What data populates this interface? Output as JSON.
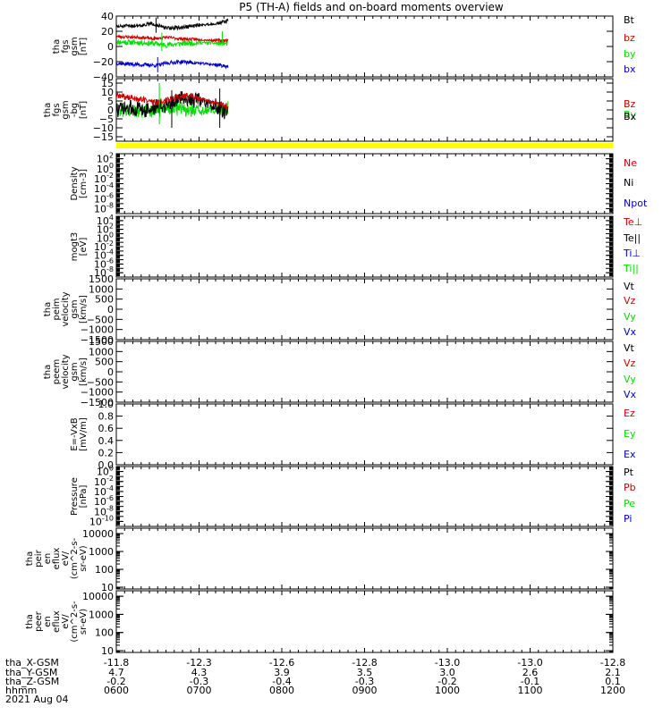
{
  "title": "P5 (TH-A) fields and on-board moments overview",
  "date_label": "2021 Aug 04",
  "footer_rows": [
    {
      "label": "tha_X-GSM",
      "values": [
        "-11.8",
        "-12.3",
        "-12.6",
        "-12.8",
        "-13.0",
        "-13.0",
        "-12.8"
      ]
    },
    {
      "label": "tha_Y-GSM",
      "values": [
        "4.7",
        "4.3",
        "3.9",
        "3.5",
        "3.0",
        "2.6",
        "2.1"
      ]
    },
    {
      "label": "tha_Z-GSM",
      "values": [
        "-0.2",
        "-0.3",
        "-0.4",
        "-0.3",
        "-0.2",
        "-0.1",
        "0.1"
      ]
    },
    {
      "label": "hhmm",
      "values": [
        "0600",
        "0700",
        "0800",
        "0900",
        "1000",
        "1100",
        "1200"
      ]
    }
  ],
  "colors": {
    "black": "#000000",
    "red": "#cc0000",
    "green": "#00dd00",
    "blue": "#0000cc",
    "yellow": "#ffff00"
  },
  "status_bar": {
    "color": "yellow"
  },
  "chart_data": [
    {
      "type": "line",
      "ylabel": [
        "tha",
        "fgs",
        "gsm",
        "[nT]"
      ],
      "ylim": [
        -40,
        40
      ],
      "yticks": [
        {
          "v": 40,
          "label": "40"
        },
        {
          "v": 20,
          "label": "20"
        },
        {
          "v": 0,
          "label": "0"
        },
        {
          "v": -20,
          "label": "−20"
        },
        {
          "v": -40,
          "label": "−40"
        }
      ],
      "legend": [
        {
          "label": "Bt",
          "color": "black"
        },
        {
          "label": "bz",
          "color": "red"
        },
        {
          "label": "by",
          "color": "green"
        },
        {
          "label": "bx",
          "color": "blue"
        }
      ],
      "series": [
        {
          "color": "green",
          "seed": 11,
          "amp": 3.5,
          "pts": [
            [
              600,
              6
            ],
            [
              630,
              5
            ],
            [
              645,
              4
            ],
            [
              660,
              2
            ],
            [
              680,
              4
            ],
            [
              700,
              5
            ],
            [
              730,
              4
            ],
            [
              735,
              4
            ]
          ]
        },
        {
          "color": "red",
          "seed": 23,
          "amp": 2,
          "pts": [
            [
              600,
              13
            ],
            [
              630,
              12
            ],
            [
              645,
              10
            ],
            [
              660,
              12
            ],
            [
              680,
              10
            ],
            [
              700,
              9
            ],
            [
              720,
              8
            ],
            [
              735,
              8
            ]
          ]
        },
        {
          "color": "blue",
          "seed": 37,
          "amp": 2.5,
          "pts": [
            [
              600,
              -22
            ],
            [
              630,
              -24
            ],
            [
              650,
              -25
            ],
            [
              660,
              -22
            ],
            [
              680,
              -20
            ],
            [
              700,
              -22
            ],
            [
              720,
              -24
            ],
            [
              735,
              -26
            ]
          ]
        },
        {
          "color": "black",
          "seed": 51,
          "amp": 2.5,
          "pts": [
            [
              600,
              26
            ],
            [
              630,
              28
            ],
            [
              645,
              30
            ],
            [
              660,
              24
            ],
            [
              680,
              25
            ],
            [
              700,
              28
            ],
            [
              720,
              30
            ],
            [
              735,
              34
            ]
          ]
        }
      ],
      "spikes": [
        {
          "color": "black",
          "x": 648,
          "y1": 38,
          "y2": 18
        },
        {
          "color": "blue",
          "x": 650,
          "y1": -14,
          "y2": -34
        },
        {
          "color": "green",
          "x": 655,
          "y1": 18,
          "y2": -6
        },
        {
          "color": "green",
          "x": 728,
          "y1": 20,
          "y2": 4
        }
      ]
    },
    {
      "type": "line",
      "ylabel": [
        "tha",
        "fgs",
        "gsm",
        "-bg",
        "[nT]"
      ],
      "ylim": [
        -17.5,
        17.5
      ],
      "yticks": [
        {
          "v": 15,
          "label": "15"
        },
        {
          "v": 10,
          "label": "10"
        },
        {
          "v": 5,
          "label": "5"
        },
        {
          "v": 0,
          "label": "0"
        },
        {
          "v": -5,
          "label": "−5"
        },
        {
          "v": -10,
          "label": "−10"
        },
        {
          "v": -15,
          "label": "−15"
        }
      ],
      "legend": [
        {
          "label": "Bz",
          "color": "red"
        },
        {
          "label": "By",
          "color": "green"
        },
        {
          "label": "Bx",
          "color": "black"
        }
      ],
      "series": [
        {
          "color": "green",
          "seed": 61,
          "amp": 4,
          "pts": [
            [
              600,
              0
            ],
            [
              630,
              -1
            ],
            [
              650,
              0
            ],
            [
              670,
              1
            ],
            [
              700,
              -1
            ],
            [
              735,
              1
            ]
          ]
        },
        {
          "color": "black",
          "seed": 73,
          "amp": 4.5,
          "pts": [
            [
              600,
              0
            ],
            [
              620,
              1
            ],
            [
              640,
              0
            ],
            [
              660,
              3
            ],
            [
              680,
              7
            ],
            [
              700,
              5
            ],
            [
              720,
              2
            ],
            [
              735,
              -2
            ]
          ]
        },
        {
          "color": "red",
          "seed": 89,
          "amp": 1.8,
          "pts": [
            [
              600,
              8
            ],
            [
              630,
              6
            ],
            [
              650,
              4
            ],
            [
              670,
              7
            ],
            [
              690,
              8
            ],
            [
              710,
              5
            ],
            [
              735,
              2
            ]
          ]
        }
      ],
      "spikes": [
        {
          "color": "green",
          "x": 652,
          "y1": 15,
          "y2": -8
        },
        {
          "color": "black",
          "x": 667,
          "y1": 11,
          "y2": -10
        },
        {
          "color": "black",
          "x": 725,
          "y1": 12,
          "y2": -10
        }
      ]
    },
    {
      "type": "line",
      "scale": "log",
      "ylabel": [
        "Density",
        "[cm-3]"
      ],
      "ylim": [
        1e-09,
        1000.0
      ],
      "yticks": [
        {
          "v": 100,
          "label": "10",
          "sup": "2"
        },
        {
          "v": 1,
          "label": "10",
          "sup": "0"
        },
        {
          "v": 0.01,
          "label": "10",
          "sup": "-2"
        },
        {
          "v": 0.0001,
          "label": "10",
          "sup": "-4"
        },
        {
          "v": 1e-06,
          "label": "10",
          "sup": "-6"
        },
        {
          "v": 1e-08,
          "label": "10",
          "sup": "-8"
        }
      ],
      "legend": [
        {
          "label": "Ne",
          "color": "red"
        },
        {
          "label": "Ni",
          "color": "black"
        },
        {
          "label": "Npot",
          "color": "blue"
        }
      ]
    },
    {
      "type": "line",
      "scale": "log",
      "ylabel": [
        "mogt3",
        "[eV]"
      ],
      "ylim": [
        1e-09,
        100000.0
      ],
      "yticks": [
        {
          "v": 10000,
          "label": "10",
          "sup": "4"
        },
        {
          "v": 100,
          "label": "10",
          "sup": "2"
        },
        {
          "v": 1,
          "label": "10",
          "sup": "0"
        },
        {
          "v": 0.01,
          "label": "10",
          "sup": "-2"
        },
        {
          "v": 0.0001,
          "label": "10",
          "sup": "-4"
        },
        {
          "v": 1e-06,
          "label": "10",
          "sup": "-6"
        },
        {
          "v": 1e-08,
          "label": "10",
          "sup": "-8"
        }
      ],
      "legend": [
        {
          "label": "Te⊥",
          "color": "red"
        },
        {
          "label": "Te||",
          "color": "black"
        },
        {
          "label": "Ti⊥",
          "color": "blue"
        },
        {
          "label": "Ti||",
          "color": "green"
        }
      ]
    },
    {
      "type": "line",
      "ylabel": [
        "tha",
        "peim",
        "velocity",
        "gsm",
        "[km/s]"
      ],
      "ylim": [
        -1500,
        1500
      ],
      "yticks": [
        {
          "v": 1500,
          "label": "1500"
        },
        {
          "v": 1000,
          "label": "1000"
        },
        {
          "v": 500,
          "label": "500"
        },
        {
          "v": 0,
          "label": "0"
        },
        {
          "v": -500,
          "label": "−500"
        },
        {
          "v": -1000,
          "label": "−1000"
        },
        {
          "v": -1500,
          "label": "−1500"
        }
      ],
      "legend": [
        {
          "label": "Vt",
          "color": "black"
        },
        {
          "label": "Vz",
          "color": "red"
        },
        {
          "label": "Vy",
          "color": "green"
        },
        {
          "label": "Vx",
          "color": "blue"
        }
      ]
    },
    {
      "type": "line",
      "ylabel": [
        "tha",
        "peem",
        "velocity",
        "gsm",
        "[km/s]"
      ],
      "ylim": [
        -1500,
        1500
      ],
      "yticks": [
        {
          "v": 1500,
          "label": "1500"
        },
        {
          "v": 1000,
          "label": "1000"
        },
        {
          "v": 500,
          "label": "500"
        },
        {
          "v": 0,
          "label": "0"
        },
        {
          "v": -500,
          "label": "−500"
        },
        {
          "v": -1000,
          "label": "−1000"
        },
        {
          "v": -1500,
          "label": "−1500"
        }
      ],
      "legend": [
        {
          "label": "Vt",
          "color": "black"
        },
        {
          "label": "Vz",
          "color": "red"
        },
        {
          "label": "Vy",
          "color": "green"
        },
        {
          "label": "Vx",
          "color": "blue"
        }
      ]
    },
    {
      "type": "line",
      "ylabel": [
        "E=-VxB",
        "[mV/m]"
      ],
      "ylim": [
        0,
        1
      ],
      "yticks": [
        {
          "v": 1,
          "label": "1.0"
        },
        {
          "v": 0.8,
          "label": "0.8"
        },
        {
          "v": 0.6,
          "label": "0.6"
        },
        {
          "v": 0.4,
          "label": "0.4"
        },
        {
          "v": 0.2,
          "label": "0.2"
        },
        {
          "v": 0,
          "label": "0.0"
        }
      ],
      "legend": [
        {
          "label": "Ez",
          "color": "red"
        },
        {
          "label": "Ey",
          "color": "green"
        },
        {
          "label": "Ex",
          "color": "blue"
        }
      ]
    },
    {
      "type": "line",
      "scale": "log",
      "ylabel": [
        "Pressure",
        "[nPa]"
      ],
      "ylim": [
        1e-11,
        10
      ],
      "yticks": [
        {
          "v": 1,
          "label": "10",
          "sup": "0"
        },
        {
          "v": 0.01,
          "label": "10",
          "sup": "-2"
        },
        {
          "v": 0.0001,
          "label": "10",
          "sup": "-4"
        },
        {
          "v": 1e-06,
          "label": "10",
          "sup": "-6"
        },
        {
          "v": 1e-08,
          "label": "10",
          "sup": "-8"
        },
        {
          "v": 1e-10,
          "label": "10",
          "sup": "-10"
        }
      ],
      "legend": [
        {
          "label": "Pt",
          "color": "black"
        },
        {
          "label": "Pb",
          "color": "red"
        },
        {
          "label": "Pe",
          "color": "green"
        },
        {
          "label": "Pi",
          "color": "blue"
        }
      ]
    },
    {
      "type": "heatmap",
      "scale": "log",
      "ylabel": [
        "tha",
        "peir",
        "en",
        "eflux",
        "eV/",
        "(cm^2-s-",
        "sr-eV)"
      ],
      "ylim": [
        8,
        20000
      ],
      "yticks": [
        {
          "v": 10000,
          "label": "10000"
        },
        {
          "v": 1000,
          "label": "1000"
        },
        {
          "v": 100,
          "label": "100"
        },
        {
          "v": 10,
          "label": "10"
        }
      ],
      "legend": []
    },
    {
      "type": "heatmap",
      "scale": "log",
      "ylabel": [
        "tha",
        "peer",
        "en",
        "eflux",
        "eV/",
        "(cm^2-s-",
        "sr-eV)"
      ],
      "ylim": [
        8,
        20000
      ],
      "yticks": [
        {
          "v": 10000,
          "label": "10000"
        },
        {
          "v": 1000,
          "label": "1000"
        },
        {
          "v": 100,
          "label": "100"
        },
        {
          "v": 10,
          "label": "10"
        }
      ],
      "legend": []
    }
  ]
}
